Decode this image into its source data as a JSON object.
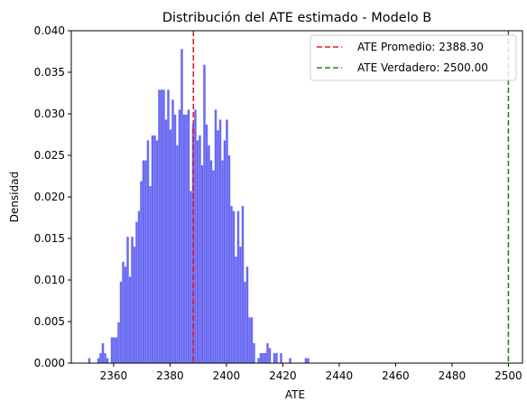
{
  "chart_data": {
    "type": "bar",
    "subtype": "histogram",
    "title": "Distribución del ATE estimado - Modelo B",
    "xlabel": "ATE",
    "ylabel": "Densidad",
    "xlim": [
      2345,
      2505
    ],
    "ylim": [
      0,
      0.04
    ],
    "xticks": [
      2360,
      2380,
      2400,
      2420,
      2440,
      2460,
      2480,
      2500
    ],
    "xtick_labels": [
      "2360",
      "2380",
      "2400",
      "2420",
      "2440",
      "2460",
      "2480",
      "2500"
    ],
    "yticks": [
      0,
      0.005,
      0.01,
      0.015,
      0.02,
      0.025,
      0.03,
      0.035,
      0.04
    ],
    "ytick_labels": [
      "0.000",
      "0.005",
      "0.010",
      "0.015",
      "0.020",
      "0.025",
      "0.030",
      "0.035",
      "0.040"
    ],
    "bin_width": 0.795,
    "bar_color": "#6a6af2",
    "bins": [
      [
        2351.0,
        0.0006
      ],
      [
        2351.8,
        0.0
      ],
      [
        2352.6,
        0.0
      ],
      [
        2353.4,
        0.0
      ],
      [
        2354.2,
        0.0006
      ],
      [
        2355.0,
        0.0012
      ],
      [
        2355.8,
        0.0024
      ],
      [
        2356.6,
        0.0012
      ],
      [
        2357.4,
        0.0006
      ],
      [
        2358.2,
        0.0
      ],
      [
        2359.0,
        0.0031
      ],
      [
        2359.8,
        0.0031
      ],
      [
        2360.6,
        0.0031
      ],
      [
        2361.4,
        0.0049
      ],
      [
        2362.2,
        0.0098
      ],
      [
        2363.0,
        0.0122
      ],
      [
        2363.8,
        0.0116
      ],
      [
        2364.6,
        0.0152
      ],
      [
        2365.4,
        0.0104
      ],
      [
        2366.2,
        0.0152
      ],
      [
        2367.0,
        0.014
      ],
      [
        2367.8,
        0.017
      ],
      [
        2368.6,
        0.0183
      ],
      [
        2369.4,
        0.0219
      ],
      [
        2370.2,
        0.0244
      ],
      [
        2371.0,
        0.0244
      ],
      [
        2371.8,
        0.0268
      ],
      [
        2372.6,
        0.0213
      ],
      [
        2373.4,
        0.0274
      ],
      [
        2374.2,
        0.0274
      ],
      [
        2375.0,
        0.0268
      ],
      [
        2375.8,
        0.0329
      ],
      [
        2376.6,
        0.0329
      ],
      [
        2377.4,
        0.0329
      ],
      [
        2378.2,
        0.0293
      ],
      [
        2379.0,
        0.0329
      ],
      [
        2379.8,
        0.0281
      ],
      [
        2380.6,
        0.0317
      ],
      [
        2381.4,
        0.0299
      ],
      [
        2382.2,
        0.0262
      ],
      [
        2383.0,
        0.0305
      ],
      [
        2383.8,
        0.0378
      ],
      [
        2384.6,
        0.0299
      ],
      [
        2385.4,
        0.0299
      ],
      [
        2386.2,
        0.0305
      ],
      [
        2387.0,
        0.0207
      ],
      [
        2387.8,
        0.0287
      ],
      [
        2388.6,
        0.0305
      ],
      [
        2389.4,
        0.0268
      ],
      [
        2390.2,
        0.0274
      ],
      [
        2391.0,
        0.0238
      ],
      [
        2391.8,
        0.0359
      ],
      [
        2392.6,
        0.0287
      ],
      [
        2393.4,
        0.0262
      ],
      [
        2394.2,
        0.0244
      ],
      [
        2395.0,
        0.0232
      ],
      [
        2395.8,
        0.0305
      ],
      [
        2396.6,
        0.028
      ],
      [
        2397.4,
        0.0293
      ],
      [
        2398.2,
        0.0244
      ],
      [
        2399.0,
        0.0268
      ],
      [
        2399.8,
        0.0293
      ],
      [
        2400.6,
        0.025
      ],
      [
        2401.4,
        0.0189
      ],
      [
        2402.2,
        0.0183
      ],
      [
        2403.0,
        0.0128
      ],
      [
        2403.8,
        0.0183
      ],
      [
        2404.6,
        0.014
      ],
      [
        2405.4,
        0.0189
      ],
      [
        2406.2,
        0.0098
      ],
      [
        2407.0,
        0.0116
      ],
      [
        2407.8,
        0.0055
      ],
      [
        2408.6,
        0.0055
      ],
      [
        2409.4,
        0.0024
      ],
      [
        2410.2,
        0.0
      ],
      [
        2411.0,
        0.0006
      ],
      [
        2411.8,
        0.0012
      ],
      [
        2412.6,
        0.0012
      ],
      [
        2413.4,
        0.0012
      ],
      [
        2414.2,
        0.0024
      ],
      [
        2415.0,
        0.0018
      ],
      [
        2415.8,
        0.0
      ],
      [
        2416.6,
        0.0012
      ],
      [
        2417.4,
        0.0012
      ],
      [
        2418.2,
        0.0
      ],
      [
        2419.0,
        0.0012
      ],
      [
        2419.8,
        0.0
      ],
      [
        2420.6,
        0.0
      ],
      [
        2421.4,
        0.0
      ],
      [
        2422.2,
        0.0006
      ],
      [
        2423.0,
        0.0
      ],
      [
        2423.8,
        0.0
      ],
      [
        2424.6,
        0.0
      ],
      [
        2425.4,
        0.0
      ],
      [
        2426.2,
        0.0
      ],
      [
        2427.0,
        0.0
      ],
      [
        2427.8,
        0.0006
      ],
      [
        2428.6,
        0.0006
      ]
    ],
    "vlines": [
      {
        "x": 2388.3,
        "color": "#e41a1c",
        "style": "dashed",
        "label": "ATE Promedio: 2388.30"
      },
      {
        "x": 2500.0,
        "color": "#1a8a1a",
        "style": "dashed",
        "label": "ATE Verdadero: 2500.00"
      }
    ],
    "legend_position": "top-right",
    "grid": false
  }
}
